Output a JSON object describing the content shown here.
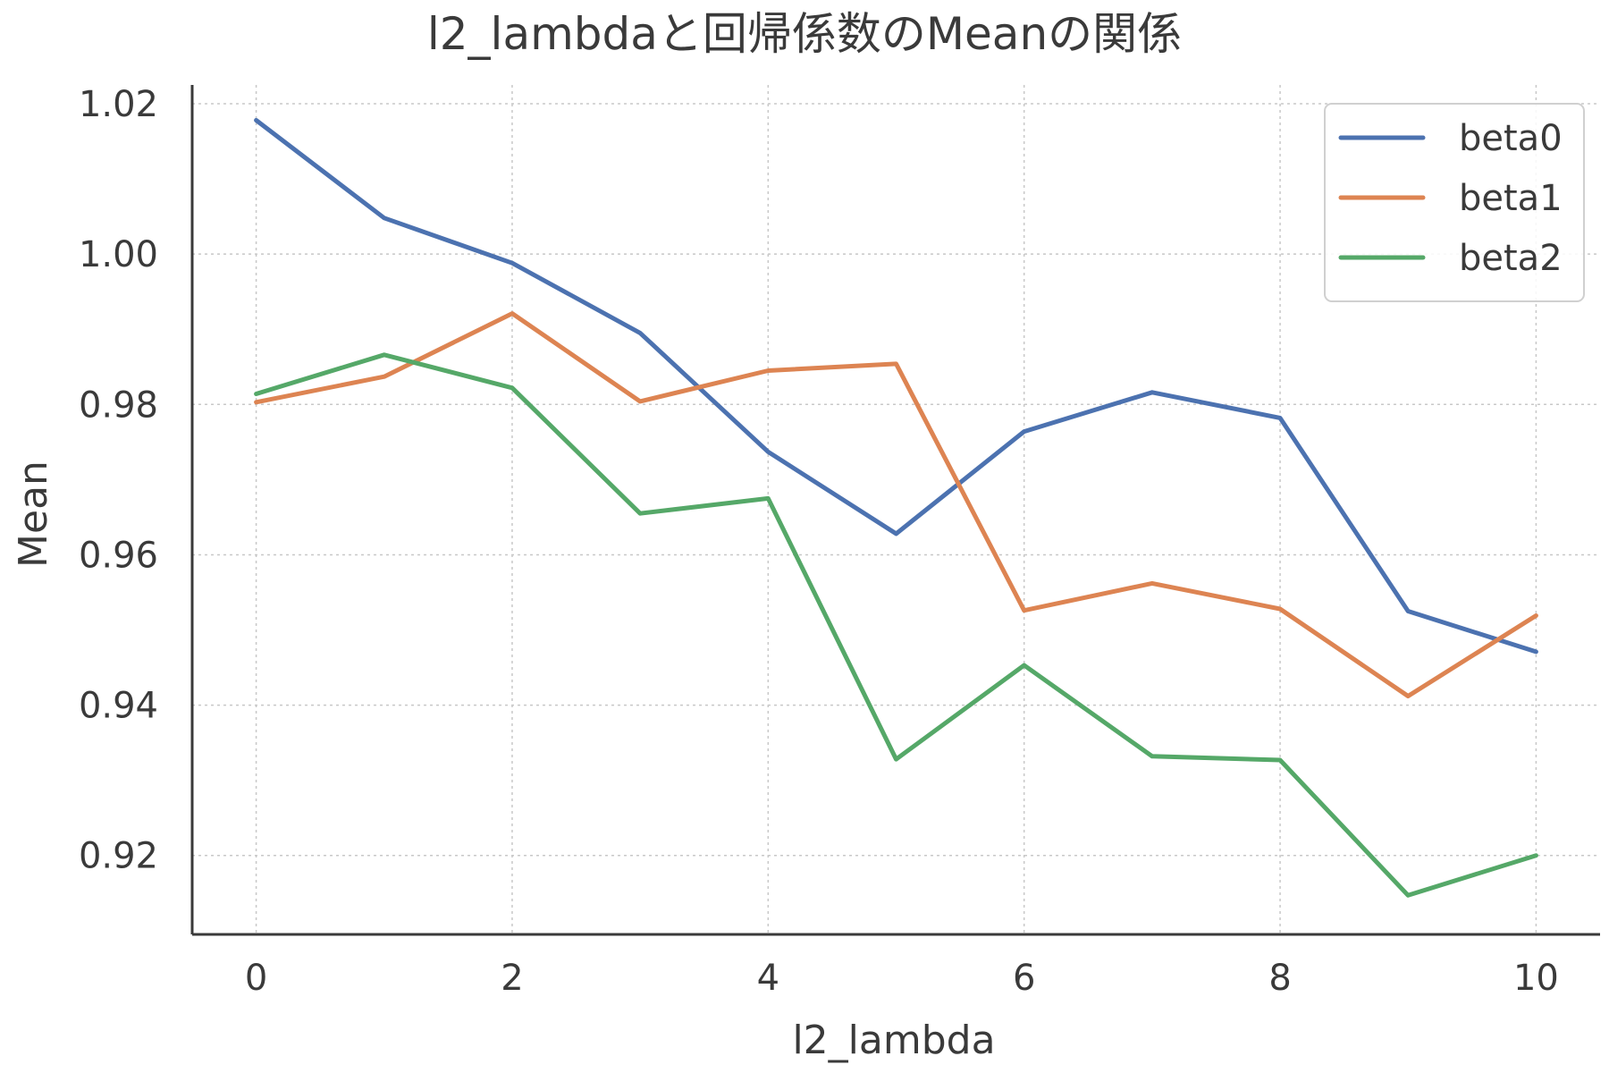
{
  "chart_data": {
    "type": "line",
    "title": "l2_lambdaと回帰係数のMeanの関係",
    "xlabel": "l2_lambda",
    "ylabel": "Mean",
    "x": [
      0,
      1,
      2,
      3,
      4,
      5,
      6,
      7,
      8,
      9,
      10
    ],
    "xlim": [
      -0.5,
      10.5
    ],
    "ylim": [
      0.9095,
      1.0225
    ],
    "xticks": [
      0,
      2,
      4,
      6,
      8,
      10
    ],
    "xtick_labels": [
      "0",
      "2",
      "4",
      "6",
      "8",
      "10"
    ],
    "yticks": [
      0.92,
      0.94,
      0.96,
      0.98,
      1.0,
      1.02
    ],
    "ytick_labels": [
      "0.92",
      "0.94",
      "0.96",
      "0.98",
      "1.00",
      "1.02"
    ],
    "grid": true,
    "legend_position": "top-right",
    "series": [
      {
        "name": "beta0",
        "color": "#4c72b0",
        "values": [
          1.0178,
          1.0048,
          0.9988,
          0.9895,
          0.9737,
          0.9628,
          0.9764,
          0.9816,
          0.9782,
          0.9525,
          0.9471
        ]
      },
      {
        "name": "beta1",
        "color": "#dd8452",
        "values": [
          0.9803,
          0.9837,
          0.9921,
          0.9804,
          0.9845,
          0.9854,
          0.9526,
          0.9562,
          0.9528,
          0.9412,
          0.9519
        ]
      },
      {
        "name": "beta2",
        "color": "#55a868",
        "values": [
          0.9814,
          0.9866,
          0.9822,
          0.9655,
          0.9675,
          0.9328,
          0.9453,
          0.9332,
          0.9327,
          0.9147,
          0.92
        ]
      }
    ]
  }
}
